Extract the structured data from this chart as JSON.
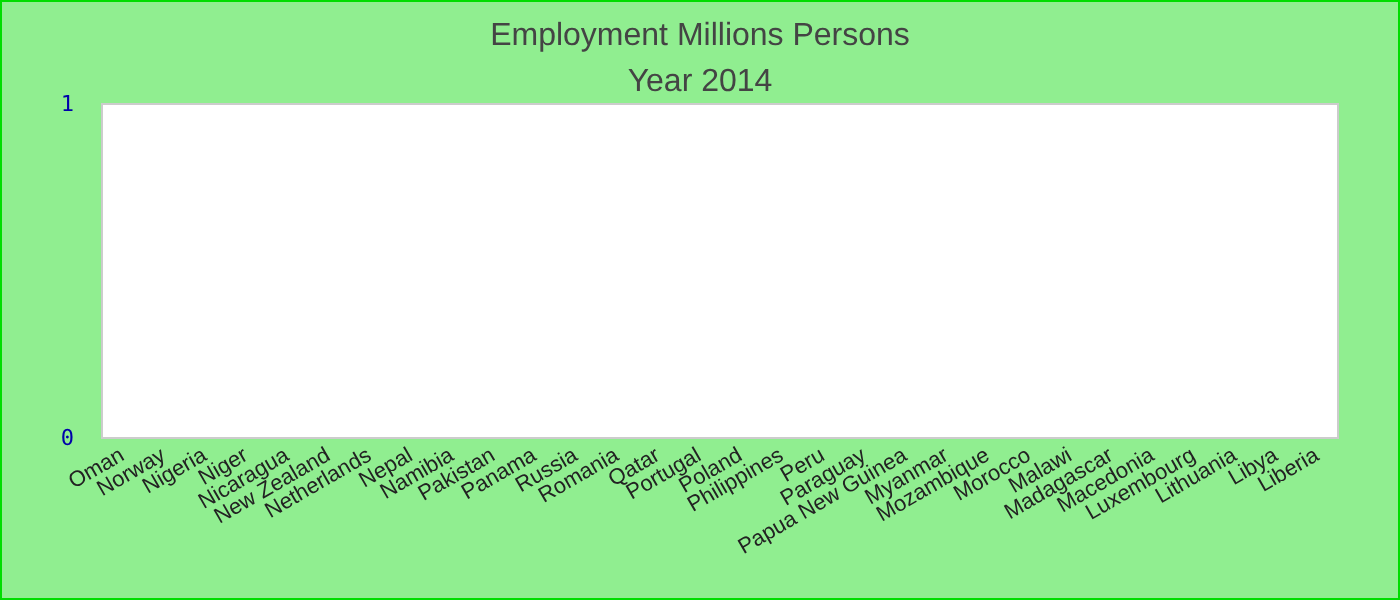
{
  "chart_data": {
    "type": "bar",
    "title": "Employment Millions Persons",
    "subtitle": "Year 2014",
    "categories": [
      "Oman",
      "Norway",
      "Nigeria",
      "Niger",
      "Nicaragua",
      "New Zealand",
      "Netherlands",
      "Nepal",
      "Namibia",
      "Pakistan",
      "Panama",
      "Russia",
      "Romania",
      "Qatar",
      "Portugal",
      "Poland",
      "Philippines",
      "Peru",
      "Paraguay",
      "Papua New Guinea",
      "Myanmar",
      "Mozambique",
      "Morocco",
      "Malawi",
      "Madagascar",
      "Macedonia",
      "Luxembourg",
      "Lithuania",
      "Libya",
      "Liberia"
    ],
    "values": [
      null,
      null,
      null,
      null,
      null,
      null,
      null,
      null,
      null,
      null,
      null,
      null,
      null,
      null,
      null,
      null,
      null,
      null,
      null,
      null,
      null,
      null,
      null,
      null,
      null,
      null,
      null,
      null,
      null,
      null
    ],
    "ylim": [
      0,
      1
    ],
    "yticks": [
      0,
      1
    ],
    "grid": false
  }
}
